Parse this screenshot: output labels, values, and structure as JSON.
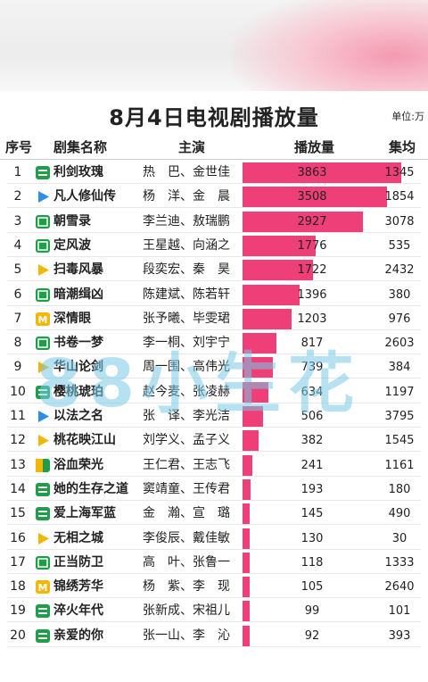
{
  "header": {
    "title": "8月4日电视剧播放量",
    "unit": "单位:万"
  },
  "columns": {
    "rank": "序号",
    "drama": "剧集名称",
    "cast": "主演",
    "plays": "播放量",
    "avg": "集均"
  },
  "watermark": "88小生花",
  "colors": {
    "bar": "#ee3f78",
    "platform_green": "#1f9d48",
    "platform_blue": "#2e8ee6",
    "platform_yellow": "#f2b705"
  },
  "chart_data": {
    "type": "bar",
    "title": "8月4日电视剧播放量",
    "unit": "单位:万",
    "series_name": "播放量",
    "categories": [
      "利剑玫瑰",
      "凡人修仙传",
      "朝雪录",
      "定风波",
      "扫毒风暴",
      "暗潮缉凶",
      "深情眼",
      "书卷一梦",
      "华山论剑",
      "樱桃琥珀",
      "以法之名",
      "桃花映江山",
      "浴血荣光",
      "她的生存之道",
      "爱上海军蓝",
      "无相之城",
      "正当防卫",
      "锦绣芳华",
      "淬火年代",
      "亲爱的你"
    ],
    "values": [
      3863,
      3508,
      2927,
      1776,
      1722,
      1396,
      1203,
      817,
      739,
      634,
      506,
      382,
      241,
      193,
      145,
      130,
      118,
      105,
      99,
      92
    ],
    "xlim": [
      0,
      3863
    ]
  },
  "rows": [
    {
      "rank": "1",
      "name": "利剑玫瑰",
      "cast": "热　巴、金世佳",
      "plays": "3863",
      "avg": "1345",
      "platform": "green-lines-icon"
    },
    {
      "rank": "2",
      "name": "凡人修仙传",
      "cast": "杨　洋、金　晨",
      "plays": "3508",
      "avg": "1854",
      "platform": "blue-arrow-icon"
    },
    {
      "rank": "3",
      "name": "朝雪录",
      "cast": "李兰迪、敖瑞鹏",
      "plays": "2927",
      "avg": "3078",
      "platform": "green-box-icon"
    },
    {
      "rank": "4",
      "name": "定风波",
      "cast": "王星越、向涵之",
      "plays": "1776",
      "avg": "535",
      "platform": "green-box-icon"
    },
    {
      "rank": "5",
      "name": "扫毒风暴",
      "cast": "段奕宏、秦　昊",
      "plays": "1722",
      "avg": "2432",
      "platform": "play-icon"
    },
    {
      "rank": "6",
      "name": "暗潮缉凶",
      "cast": "陈建斌、陈若轩",
      "plays": "1396",
      "avg": "380",
      "platform": "green-box-icon"
    },
    {
      "rank": "7",
      "name": "深情眼",
      "cast": "张予曦、毕雯珺",
      "plays": "1203",
      "avg": "976",
      "platform": "yellow-m-icon"
    },
    {
      "rank": "8",
      "name": "书卷一梦",
      "cast": "李一桐、刘宇宁",
      "plays": "817",
      "avg": "2603",
      "platform": "green-box-icon"
    },
    {
      "rank": "9",
      "name": "华山论剑",
      "cast": "周一围、高伟光",
      "plays": "739",
      "avg": "384",
      "platform": "play-icon"
    },
    {
      "rank": "10",
      "name": "樱桃琥珀",
      "cast": "赵今麦、张凌赫",
      "plays": "634",
      "avg": "1197",
      "platform": "green-lines-icon"
    },
    {
      "rank": "11",
      "name": "以法之名",
      "cast": "张　译、李光洁",
      "plays": "506",
      "avg": "3795",
      "platform": "blue-arrow-icon"
    },
    {
      "rank": "12",
      "name": "桃花映江山",
      "cast": "刘学义、孟子义",
      "plays": "382",
      "avg": "1545",
      "platform": "play-icon"
    },
    {
      "rank": "13",
      "name": "浴血荣光",
      "cast": "王仁君、王志飞",
      "plays": "241",
      "avg": "1161",
      "platform": "green-yellow-icon"
    },
    {
      "rank": "14",
      "name": "她的生存之道",
      "cast": "窦靖童、王传君",
      "plays": "193",
      "avg": "180",
      "platform": "green-lines-icon"
    },
    {
      "rank": "15",
      "name": "爱上海军蓝",
      "cast": "金　瀚、宣　璐",
      "plays": "145",
      "avg": "490",
      "platform": "green-lines-icon"
    },
    {
      "rank": "16",
      "name": "无相之城",
      "cast": "李俊辰、戴佳敏",
      "plays": "130",
      "avg": "30",
      "platform": "play-icon"
    },
    {
      "rank": "17",
      "name": "正当防卫",
      "cast": "高　叶、张鲁一",
      "plays": "118",
      "avg": "1333",
      "platform": "green-box-icon"
    },
    {
      "rank": "18",
      "name": "锦绣芳华",
      "cast": "杨　紫、李　现",
      "plays": "105",
      "avg": "2640",
      "platform": "yellow-m-icon"
    },
    {
      "rank": "19",
      "name": "淬火年代",
      "cast": "张新成、宋祖儿",
      "plays": "99",
      "avg": "101",
      "platform": "green-lines-icon"
    },
    {
      "rank": "20",
      "name": "亲爱的你",
      "cast": "张一山、李　沁",
      "plays": "92",
      "avg": "393",
      "platform": "green-lines-icon"
    }
  ]
}
